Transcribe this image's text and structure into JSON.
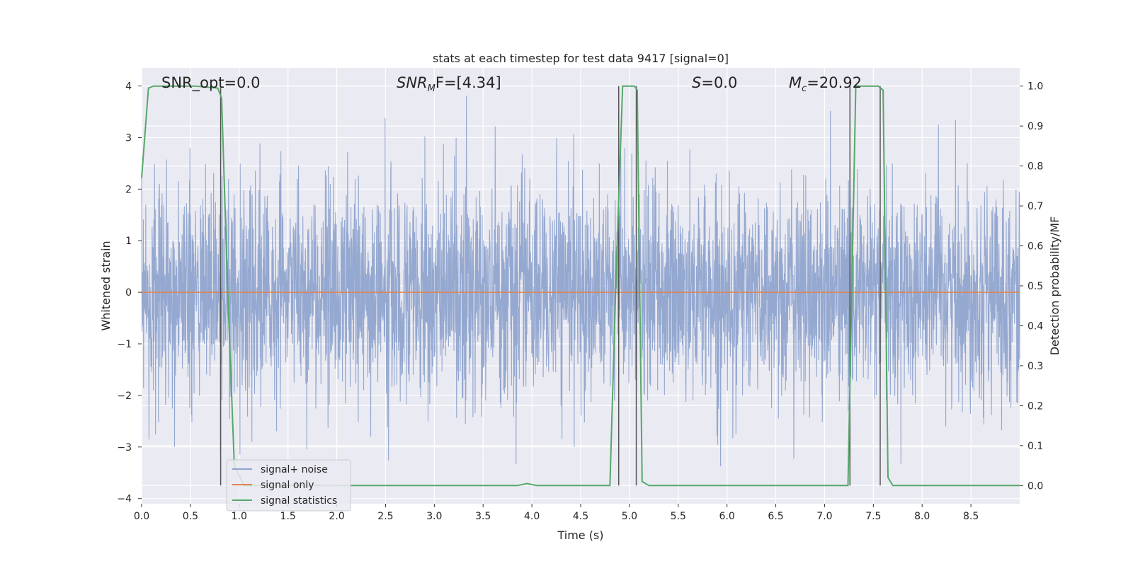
{
  "chart_data": {
    "type": "line",
    "title": "stats at each timestep for test data 9417 [signal=0]",
    "xlabel": "Time (s)",
    "ylabel_left": "Whitened strain",
    "ylabel_right": "Detection probability/MF",
    "xlim": [
      0.0,
      9.0
    ],
    "ylim_left": [
      -4.1,
      4.35
    ],
    "ylim_right": [
      -0.0455,
      1.0455
    ],
    "x_ticks": [
      "0.0",
      "0.5",
      "1.0",
      "1.5",
      "2.0",
      "2.5",
      "3.0",
      "3.5",
      "4.0",
      "4.5",
      "5.0",
      "5.5",
      "6.0",
      "6.5",
      "7.0",
      "7.5",
      "8.0",
      "8.5"
    ],
    "y_ticks_left": [
      "4",
      "3",
      "2",
      "1",
      "0",
      "−1",
      "−2",
      "−3",
      "−4"
    ],
    "y_ticks_right": [
      "1.0",
      "0.9",
      "0.8",
      "0.7",
      "0.6",
      "0.5",
      "0.4",
      "0.3",
      "0.2",
      "0.1",
      "0.0"
    ],
    "grid": true,
    "legend_position": "lower-left",
    "colors": {
      "noise": "#8fa4cd",
      "signal": "#dd8452",
      "stats": "#55a868",
      "background": "#eaeaf2",
      "grid": "#ffffff",
      "vline": "#555555"
    },
    "annotations": {
      "snr_opt": "SNR_opt=0.0",
      "snr_mf_pre": "SNR",
      "snr_mf_sub": "M",
      "snr_mf_post": "F=[4.34]",
      "s_pre": "S",
      "s_post": "=0.0",
      "mc_pre": "M",
      "mc_sub": "c",
      "mc_post": "=20.92"
    },
    "series": [
      {
        "name": "signal+ noise",
        "kind": "whitened noise, amplitude ~ ±2",
        "x_range": [
          0.0,
          9.0
        ]
      },
      {
        "name": "signal only",
        "x": [
          0.0,
          9.0
        ],
        "y": [
          0.0,
          0.0
        ]
      },
      {
        "name": "signal statistics",
        "axis": "right",
        "x": [
          0.0,
          0.07,
          0.12,
          0.2,
          0.55,
          0.78,
          0.82,
          0.88,
          0.95,
          1.05,
          1.5,
          2.0,
          2.5,
          3.0,
          3.5,
          3.85,
          3.95,
          4.05,
          4.5,
          4.8,
          4.86,
          4.93,
          5.05,
          5.08,
          5.13,
          5.2,
          5.6,
          6.0,
          6.5,
          7.0,
          7.24,
          7.32,
          7.38,
          7.55,
          7.6,
          7.65,
          7.7,
          8.0,
          8.5,
          9.0
        ],
        "y": [
          0.77,
          0.995,
          1.0,
          1.0,
          1.0,
          0.995,
          0.97,
          0.5,
          0.05,
          0.0,
          0.0,
          0.0,
          0.0,
          0.0,
          0.0,
          0.0,
          0.005,
          0.0,
          0.0,
          0.0,
          0.5,
          1.0,
          1.0,
          0.99,
          0.01,
          0.0,
          0.0,
          0.0,
          0.0,
          0.0,
          0.0,
          1.0,
          1.0,
          1.0,
          0.99,
          0.02,
          0.0,
          0.0,
          0.0,
          0.0
        ]
      }
    ],
    "vertical_lines_x": [
      0.81,
      4.89,
      5.07,
      7.26,
      7.57
    ]
  }
}
